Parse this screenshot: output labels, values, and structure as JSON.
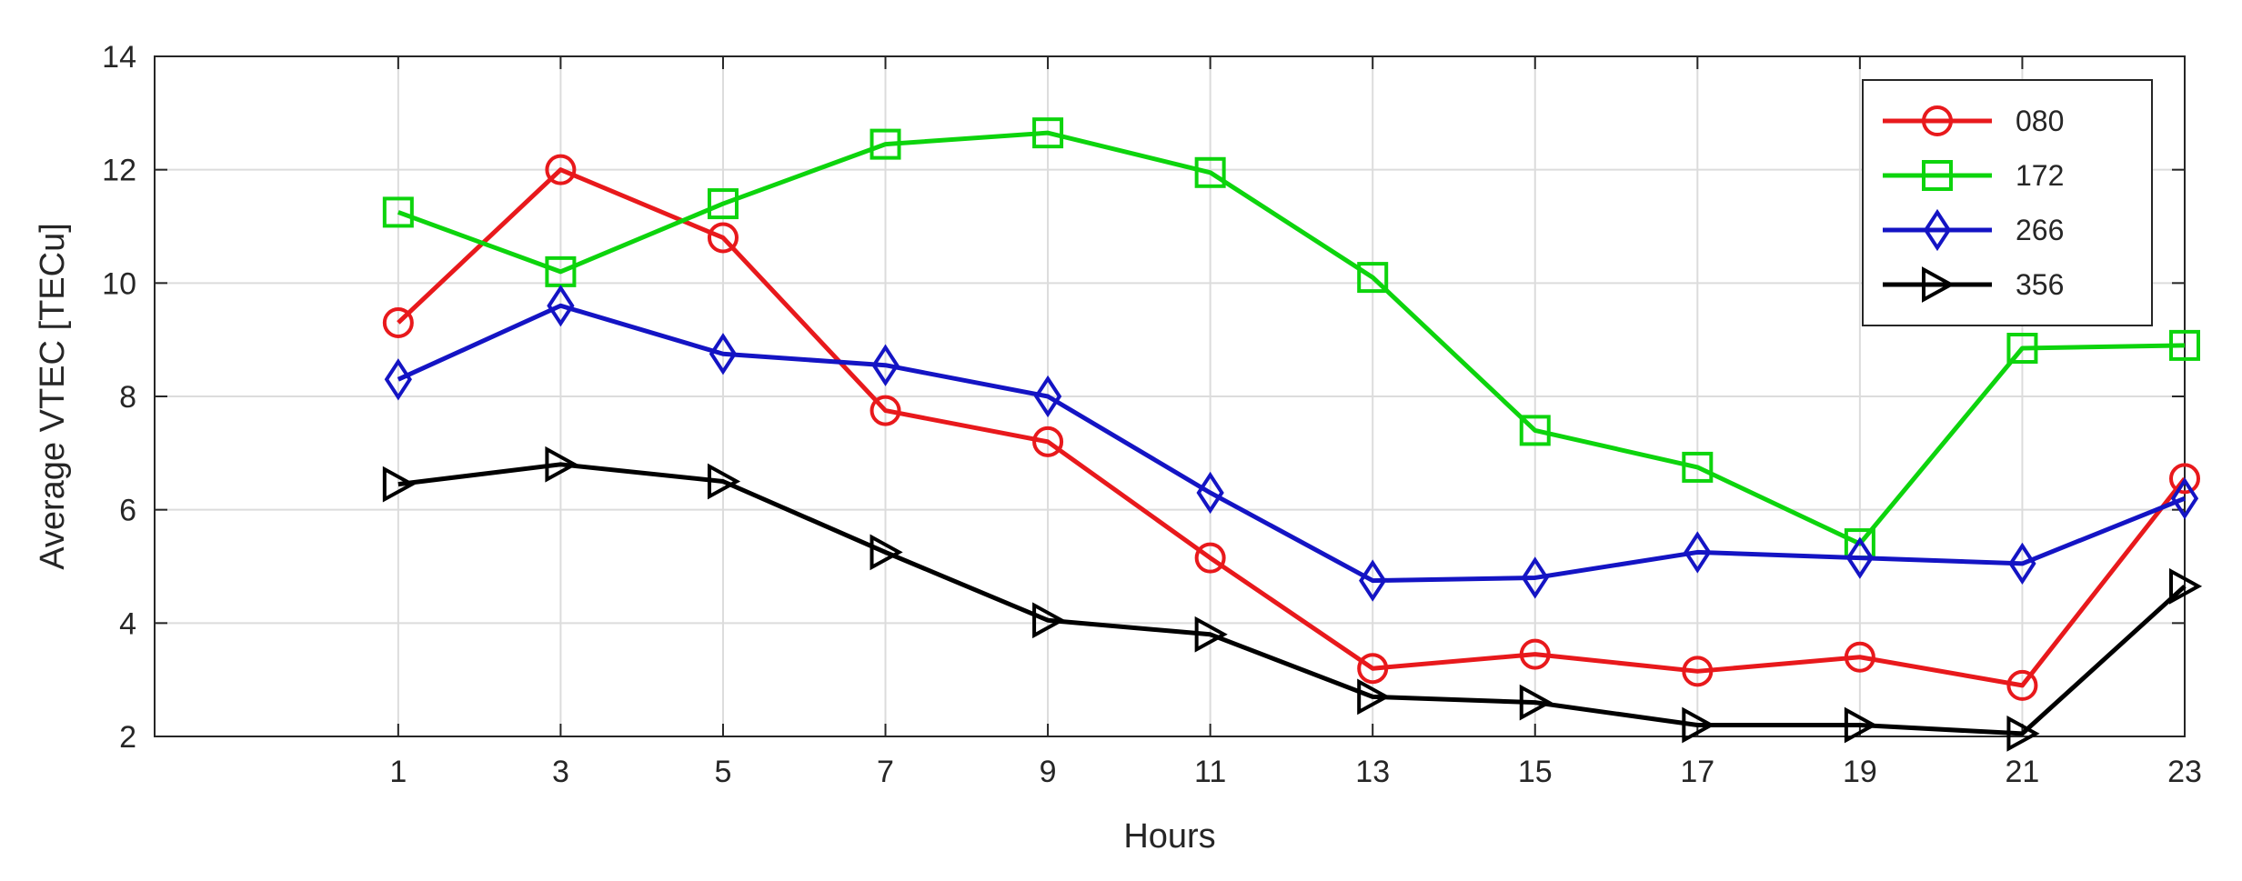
{
  "chart_data": {
    "type": "line",
    "xlabel": "Hours",
    "ylabel": "Average VTEC [TECu]",
    "x": [
      1,
      3,
      5,
      7,
      9,
      11,
      13,
      15,
      17,
      19,
      21,
      23
    ],
    "xticks": [
      "1",
      "3",
      "5",
      "7",
      "9",
      "11",
      "13",
      "15",
      "17",
      "19",
      "21",
      "23"
    ],
    "xlim": [
      -2,
      23
    ],
    "ylim": [
      2,
      14
    ],
    "yticks": [
      "2",
      "4",
      "6",
      "8",
      "10",
      "12",
      "14"
    ],
    "grid": true,
    "legend_position": "top-right",
    "series": [
      {
        "name": "080",
        "color": "#e8191c",
        "marker": "circle",
        "values": [
          9.3,
          12.0,
          10.8,
          7.75,
          7.2,
          5.15,
          3.2,
          3.45,
          3.15,
          3.4,
          2.9,
          6.55
        ]
      },
      {
        "name": "172",
        "color": "#0dd40d",
        "marker": "square",
        "values": [
          11.25,
          10.2,
          11.4,
          12.45,
          12.65,
          11.95,
          10.1,
          7.4,
          6.75,
          5.4,
          8.85,
          8.9
        ]
      },
      {
        "name": "266",
        "color": "#1414c4",
        "marker": "diamond",
        "values": [
          8.3,
          9.6,
          8.75,
          8.55,
          8.0,
          6.3,
          4.75,
          4.8,
          5.25,
          5.15,
          5.05,
          6.2
        ]
      },
      {
        "name": "356",
        "color": "#000000",
        "marker": "triangle-right",
        "values": [
          6.45,
          6.8,
          6.5,
          5.25,
          4.05,
          3.8,
          2.7,
          2.6,
          2.2,
          2.2,
          2.05,
          4.65
        ]
      }
    ]
  }
}
